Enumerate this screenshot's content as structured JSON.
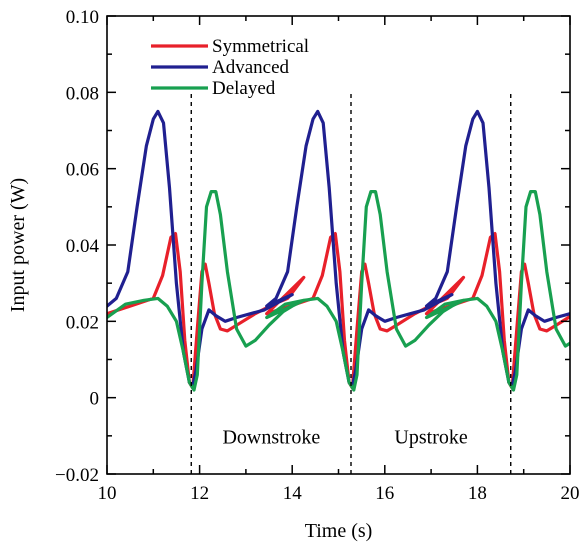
{
  "chart_data": {
    "type": "line",
    "title": "",
    "xlabel": "Time (s)",
    "ylabel": "Input power (W)",
    "xlim": [
      10,
      20
    ],
    "ylim": [
      -0.02,
      0.1
    ],
    "xticks": [
      10,
      12,
      14,
      16,
      18,
      20
    ],
    "xtick_labels": [
      "10",
      "12",
      "14",
      "16",
      "18",
      "20"
    ],
    "yticks": [
      -0.02,
      0,
      0.02,
      0.04,
      0.06,
      0.08,
      0.1
    ],
    "ytick_labels": [
      "−0.02",
      "0",
      "0.02",
      "0.04",
      "0.06",
      "0.08",
      "0.10"
    ],
    "grid": false,
    "legend_position": "top-left",
    "vertical_markers": [
      11.82,
      15.27,
      18.72
    ],
    "annotations": [
      {
        "text": "Downstroke",
        "x": 13.55,
        "y": -0.012
      },
      {
        "text": "Upstroke",
        "x": 17.0,
        "y": -0.012
      }
    ],
    "period": 3.45,
    "series": [
      {
        "name": "Symmetrical",
        "color": "#e8202a",
        "x": [
          10.0,
          10.5,
          11.0,
          11.2,
          11.38,
          11.48,
          11.58,
          11.68,
          11.78,
          11.85,
          11.95,
          12.05,
          12.12,
          12.2,
          12.32,
          12.45,
          12.6,
          12.8,
          13.2,
          13.6,
          13.9,
          14.0,
          14.25
        ],
        "values": [
          0.022,
          0.024,
          0.026,
          0.032,
          0.042,
          0.043,
          0.033,
          0.015,
          0.004,
          0.0025,
          0.018,
          0.033,
          0.035,
          0.03,
          0.022,
          0.018,
          0.0175,
          0.019,
          0.022,
          0.0245,
          0.026,
          0.0275,
          0.0315
        ]
      },
      {
        "name": "Advanced",
        "color": "#202090",
        "x": [
          10.0,
          10.2,
          10.45,
          10.65,
          10.85,
          11.0,
          11.1,
          11.22,
          11.35,
          11.5,
          11.65,
          11.78,
          11.85,
          11.92,
          12.05,
          12.2,
          12.35,
          12.55,
          12.8,
          13.1,
          13.4,
          13.7,
          14.0
        ],
        "values": [
          0.024,
          0.026,
          0.033,
          0.05,
          0.066,
          0.073,
          0.075,
          0.072,
          0.055,
          0.03,
          0.012,
          0.004,
          0.003,
          0.007,
          0.018,
          0.023,
          0.0215,
          0.02,
          0.021,
          0.022,
          0.023,
          0.025,
          0.027
        ]
      },
      {
        "name": "Delayed",
        "color": "#18a050",
        "x": [
          10.0,
          10.4,
          10.8,
          11.1,
          11.3,
          11.5,
          11.65,
          11.78,
          11.88,
          11.95,
          12.05,
          12.15,
          12.25,
          12.35,
          12.45,
          12.6,
          12.8,
          13.0,
          13.2,
          13.5,
          13.8,
          14.0,
          14.25
        ],
        "values": [
          0.021,
          0.0245,
          0.0255,
          0.026,
          0.024,
          0.02,
          0.012,
          0.004,
          0.002,
          0.006,
          0.03,
          0.05,
          0.054,
          0.054,
          0.048,
          0.033,
          0.018,
          0.0135,
          0.015,
          0.019,
          0.0225,
          0.024,
          0.0255
        ]
      }
    ]
  }
}
